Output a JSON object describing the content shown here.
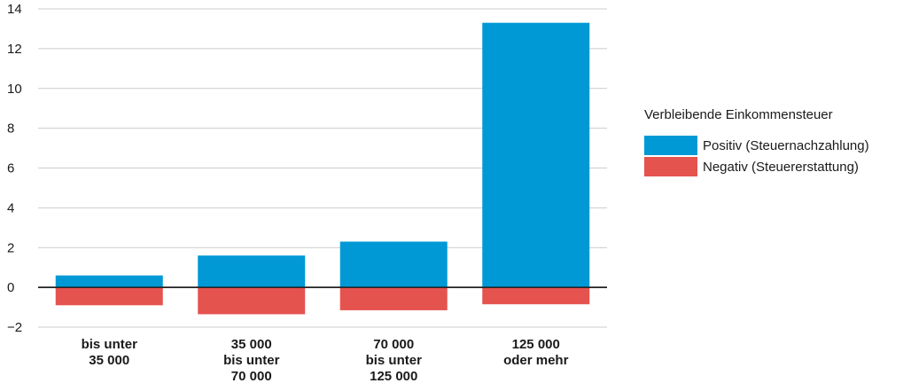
{
  "chart_data": {
    "type": "bar",
    "categories": [
      [
        "bis unter",
        "35 000"
      ],
      [
        "35 000",
        "bis unter",
        "70 000"
      ],
      [
        "70 000",
        "bis unter",
        "125 000"
      ],
      [
        "125 000",
        "oder mehr"
      ]
    ],
    "series": [
      {
        "name": "Positiv (Steuernachzahlung)",
        "values": [
          0.6,
          1.6,
          2.3,
          13.3
        ],
        "color": "#0099d5"
      },
      {
        "name": "Negativ (Steuererstattung)",
        "values": [
          -0.9,
          -1.35,
          -1.15,
          -0.85
        ],
        "color": "#e5534f"
      }
    ],
    "ylim": [
      -2,
      14
    ],
    "yticks": [
      -2,
      0,
      2,
      4,
      6,
      8,
      10,
      12,
      14
    ],
    "ytick_labels": [
      "−2",
      "0",
      "2",
      "4",
      "6",
      "8",
      "10",
      "12",
      "14"
    ],
    "grid": true,
    "legend": {
      "title": "Verbleibende Einkommensteuer",
      "placement": "right"
    }
  }
}
